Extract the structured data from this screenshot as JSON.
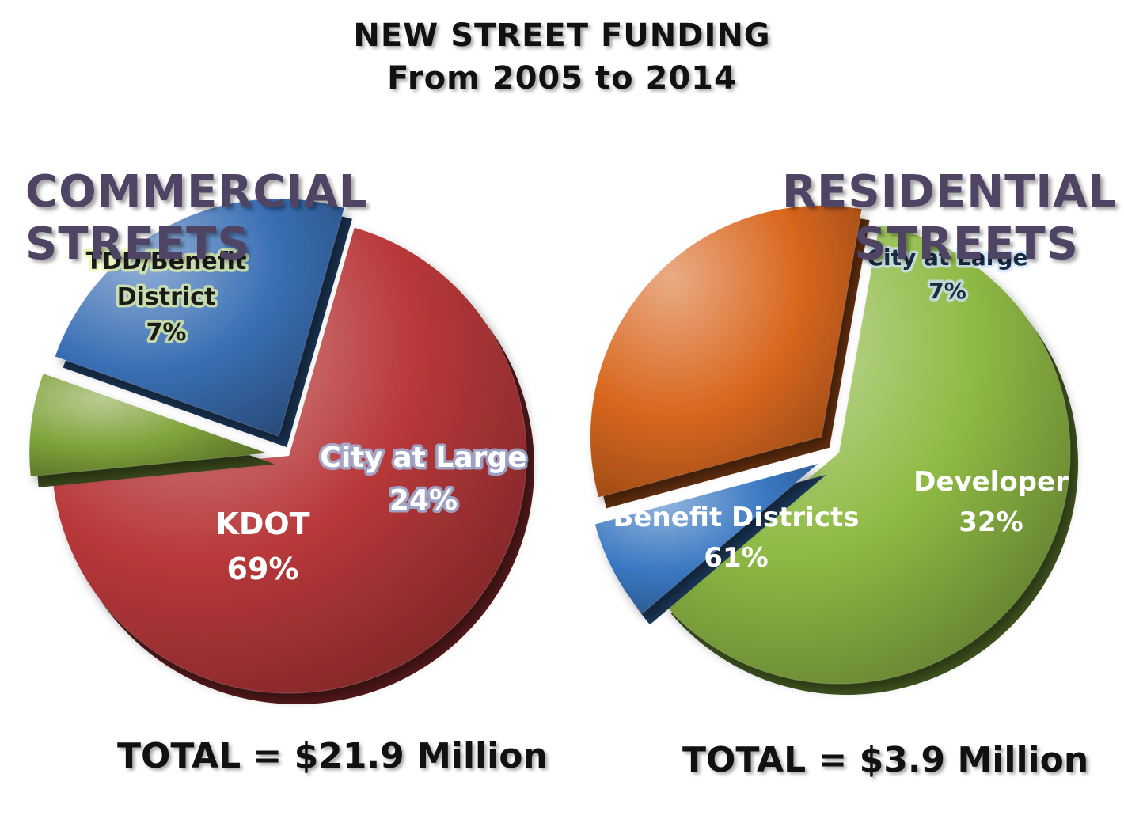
{
  "header": {
    "title_line1": "NEW STREET FUNDING",
    "title_line2": "From 2005 to 2014"
  },
  "commercial": {
    "heading_line1": "COMMERCIAL",
    "heading_line2": "STREETS",
    "total": "TOTAL = $21.9 Million"
  },
  "residential": {
    "heading_line1": "RESIDENTIAL",
    "heading_line2": "STREETS",
    "total": "TOTAL = $3.9 Million"
  },
  "chart_data": [
    {
      "type": "pie",
      "title": "COMMERCIAL STREETS",
      "categories": [
        "KDOT",
        "TDD/Benefit District",
        "City at Large"
      ],
      "values": [
        69,
        7,
        24
      ],
      "labels": [
        [
          "KDOT",
          "69%"
        ],
        [
          "TDD/Benefit",
          "District",
          "7%"
        ],
        [
          "City at Large",
          "24%"
        ]
      ],
      "colors": [
        "#b8383a",
        "#7fa33a",
        "#3a6fb5"
      ],
      "exploded": [
        false,
        true,
        true
      ]
    },
    {
      "type": "pie",
      "title": "RESIDENTIAL STREETS",
      "categories": [
        "Benefit Districts",
        "City at Large",
        "Developer"
      ],
      "values": [
        61,
        7,
        32
      ],
      "labels": [
        [
          "Benefit Districts",
          "61%"
        ],
        [
          "City at Large",
          "7%"
        ],
        [
          "Developer",
          "32%"
        ]
      ],
      "colors": [
        "#8fba45",
        "#3a78c2",
        "#d9671f"
      ],
      "exploded": [
        false,
        true,
        true
      ]
    }
  ]
}
